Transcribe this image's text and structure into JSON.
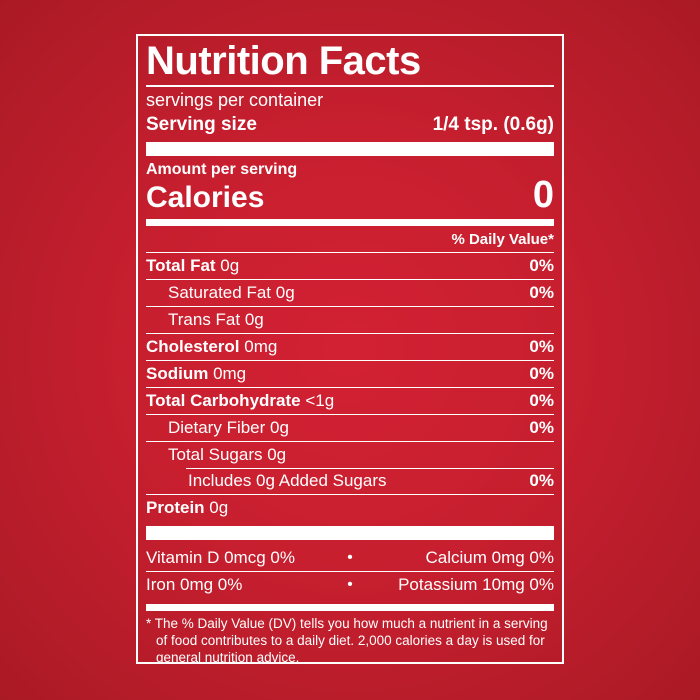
{
  "colors": {
    "background_center": "#d22133",
    "background_edge": "#aa1a25",
    "panel_red": "#c71f2f",
    "text": "#ffffff",
    "rule": "#ffffff"
  },
  "label": {
    "title": "Nutrition Facts",
    "servings_per_container": "servings per container",
    "serving_size_label": "Serving size",
    "serving_size_value": "1/4 tsp. (0.6g)",
    "amount_per_serving": "Amount per serving",
    "calories_label": "Calories",
    "calories_value": "0",
    "daily_value_header": "% Daily Value*",
    "nutrients": [
      {
        "name": "Total Fat",
        "amount": "0g",
        "dv": "0%",
        "bold": true,
        "indent": 0,
        "inset": false
      },
      {
        "name": "Saturated Fat",
        "amount": "0g",
        "dv": "0%",
        "bold": false,
        "indent": 1,
        "inset": false
      },
      {
        "name": "Trans Fat",
        "amount": "0g",
        "dv": "",
        "bold": false,
        "indent": 1,
        "inset": false
      },
      {
        "name": "Cholesterol",
        "amount": "0mg",
        "dv": "0%",
        "bold": true,
        "indent": 0,
        "inset": false
      },
      {
        "name": "Sodium",
        "amount": "0mg",
        "dv": "0%",
        "bold": true,
        "indent": 0,
        "inset": false
      },
      {
        "name": "Total Carbohydrate",
        "amount": "<1g",
        "dv": "0%",
        "bold": true,
        "indent": 0,
        "inset": false
      },
      {
        "name": "Dietary Fiber",
        "amount": "0g",
        "dv": "0%",
        "bold": false,
        "indent": 1,
        "inset": false
      },
      {
        "name": "Total Sugars",
        "amount": "0g",
        "dv": "",
        "bold": false,
        "indent": 1,
        "inset": false
      },
      {
        "name": "Includes 0g Added Sugars",
        "amount": "",
        "dv": "0%",
        "bold": false,
        "indent": 2,
        "inset": true
      },
      {
        "name": "Protein",
        "amount": "0g",
        "dv": "",
        "bold": true,
        "indent": 0,
        "inset": false
      }
    ],
    "bullet": "•",
    "micronutrients": [
      {
        "left": "Vitamin D 0mcg 0%",
        "right": "Calcium 0mg 0%"
      },
      {
        "left": "Iron 0mg 0%",
        "right": "Potassium 10mg 0%"
      }
    ],
    "footnote": "* The % Daily Value (DV) tells you how much a nutrient in a serving of food contributes to a daily diet. 2,000 calories a day is used for general nutrition advice."
  }
}
